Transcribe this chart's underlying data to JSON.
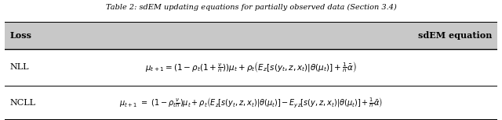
{
  "title": "Table 2: sdEM updating equations for partially observed data (Section 3.4)",
  "col1_header": "Loss",
  "col2_header": "sdEM equation",
  "row1_label": "NLL",
  "row1_eq": "$\\mu_{t+1} = (1 - \\rho_t(1 + \\frac{\\nu}{n}))\\mu_t + \\rho_t \\left(E_z[s(y_t, z, x_t)|\\theta(\\mu_t)] + \\frac{1}{n}\\bar{\\alpha}\\right)$",
  "row2_label": "NCLL",
  "row2_eq": "$\\mu_{t+1} \\ = \\ (1 - \\rho_t \\frac{\\nu}{n})\\mu_t + \\rho_t \\left(E_z[s(y_t, z, x_t)|\\theta(\\mu_t)] - E_{yz}[s(y, z, x_t)|\\theta(\\mu_t)] + \\frac{1}{n}\\bar{\\alpha}\\right)$",
  "bg_color": "#ffffff",
  "header_bg": "#d0d0d0",
  "figsize": [
    6.4,
    1.54
  ],
  "dpi": 100
}
